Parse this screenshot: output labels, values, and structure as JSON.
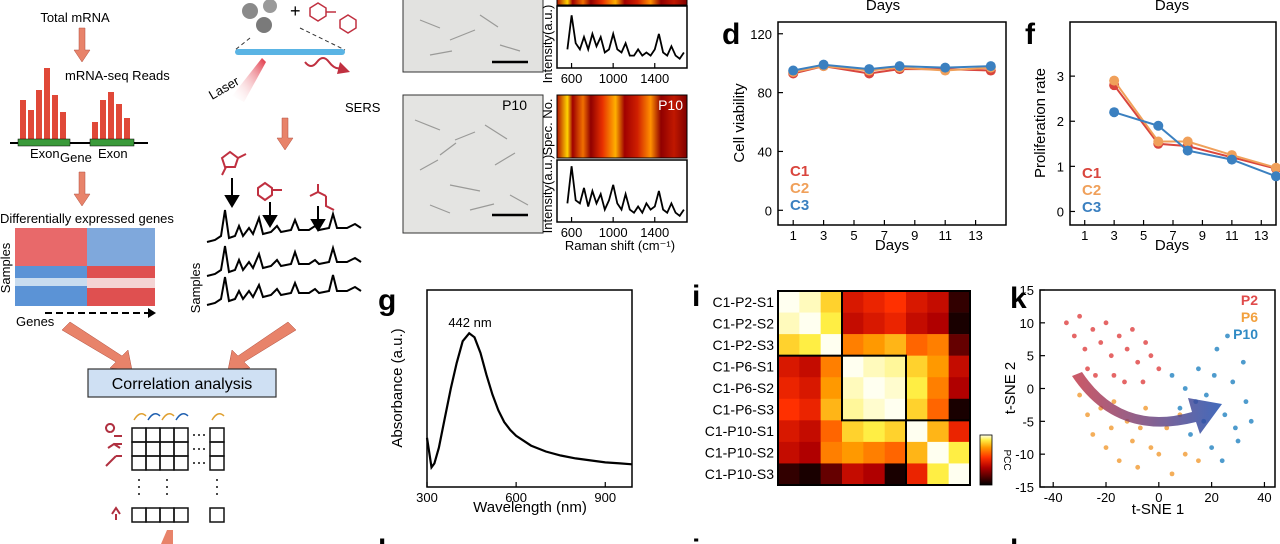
{
  "texts": {
    "total_mrna": "Total mRNA",
    "reads": "mRNA-seq Reads",
    "exon_left": "Exon",
    "gene": "Gene",
    "exon_right": "Exon",
    "deg": "Differentially expressed genes",
    "samples_left": "Samples",
    "genes": "Genes",
    "correlation": "Correlation analysis",
    "laser": "Laser",
    "sers": "SERS",
    "samples_right": "Samples",
    "micro_label": "P10",
    "raman_label": "P10",
    "days_d": "Days",
    "days_f": "Days"
  },
  "panels": {
    "d": "d",
    "f": "f",
    "g": "g",
    "i": "i",
    "k": "k",
    "h": "h",
    "j": "j",
    "l": "l"
  },
  "chart_data": [
    {
      "type": "line",
      "xlabel": "Days",
      "ylabel": "Cell viability",
      "x": [
        1,
        3,
        6,
        8,
        11,
        14
      ],
      "xlim": [
        0,
        15
      ],
      "xticks": [
        1,
        3,
        5,
        7,
        9,
        11,
        13
      ],
      "ylim": [
        -10,
        128
      ],
      "yticks": [
        0,
        40,
        80,
        120
      ],
      "series": [
        {
          "name": "C1",
          "color": "#d9453d",
          "values": [
            93,
            98,
            93,
            96,
            96,
            95
          ]
        },
        {
          "name": "C2",
          "color": "#f0a05a",
          "values": [
            94,
            98,
            95,
            97,
            95,
            97
          ]
        },
        {
          "name": "C3",
          "color": "#3b80c0",
          "values": [
            95,
            99,
            96,
            98,
            97,
            98
          ]
        }
      ]
    },
    {
      "type": "line",
      "xlabel": "Days",
      "ylabel": "Proliferation rate",
      "x": [
        3,
        6,
        8,
        11,
        14
      ],
      "xlim": [
        0,
        14
      ],
      "xticks": [
        1,
        3,
        5,
        7,
        9,
        11,
        13
      ],
      "ylim": [
        -0.3,
        4.2
      ],
      "yticks": [
        0,
        1,
        2,
        3
      ],
      "series": [
        {
          "name": "C1",
          "color": "#d9453d",
          "values": [
            2.8,
            1.5,
            1.45,
            1.2,
            0.95
          ]
        },
        {
          "name": "C2",
          "color": "#f0a05a",
          "values": [
            2.9,
            1.55,
            1.55,
            1.25,
            0.97
          ]
        },
        {
          "name": "C3",
          "color": "#3b80c0",
          "values": [
            2.2,
            1.9,
            1.35,
            1.15,
            0.78
          ]
        }
      ]
    },
    {
      "type": "line",
      "xlabel": "Wavelength (nm)",
      "ylabel": "Absorbance (a.u.)",
      "annotation": "442 nm",
      "color": "#000000",
      "x": [
        300,
        305,
        315,
        325,
        340,
        360,
        380,
        400,
        420,
        442,
        460,
        480,
        500,
        520,
        540,
        560,
        580,
        600,
        650,
        700,
        750,
        800,
        850,
        900,
        950,
        990
      ],
      "values": [
        0.25,
        0.2,
        0.1,
        0.12,
        0.2,
        0.35,
        0.5,
        0.63,
        0.74,
        0.78,
        0.76,
        0.68,
        0.57,
        0.47,
        0.39,
        0.33,
        0.29,
        0.26,
        0.21,
        0.18,
        0.16,
        0.145,
        0.135,
        0.125,
        0.12,
        0.115
      ],
      "xlim": [
        300,
        990
      ],
      "xticks": [
        300,
        600,
        900
      ],
      "ylim": [
        0,
        1
      ]
    },
    {
      "type": "heatmap",
      "colorbar_label": "PCC",
      "zlim": [
        0,
        1
      ],
      "categories": [
        "C1-P2-S1",
        "C1-P2-S2",
        "C1-P2-S3",
        "C1-P6-S1",
        "C1-P6-S2",
        "C1-P6-S3",
        "C1-P10-S1",
        "C1-P10-S2",
        "C1-P10-S3"
      ],
      "values": [
        [
          1.0,
          0.97,
          0.85,
          0.45,
          0.5,
          0.55,
          0.45,
          0.4,
          0.1
        ],
        [
          0.97,
          1.0,
          0.9,
          0.4,
          0.45,
          0.5,
          0.4,
          0.35,
          0.05
        ],
        [
          0.85,
          0.9,
          1.0,
          0.7,
          0.75,
          0.8,
          0.65,
          0.7,
          0.2
        ],
        [
          0.45,
          0.4,
          0.7,
          1.0,
          0.97,
          0.95,
          0.85,
          0.75,
          0.4
        ],
        [
          0.5,
          0.45,
          0.75,
          0.97,
          1.0,
          0.98,
          0.9,
          0.7,
          0.35
        ],
        [
          0.55,
          0.5,
          0.8,
          0.95,
          0.98,
          1.0,
          0.85,
          0.65,
          0.05
        ],
        [
          0.45,
          0.4,
          0.65,
          0.85,
          0.9,
          0.85,
          1.0,
          0.8,
          0.5
        ],
        [
          0.4,
          0.35,
          0.7,
          0.75,
          0.7,
          0.65,
          0.8,
          1.0,
          0.9
        ],
        [
          0.1,
          0.05,
          0.2,
          0.4,
          0.35,
          0.05,
          0.5,
          0.9,
          1.0
        ]
      ]
    },
    {
      "type": "scatter",
      "xlabel": "t-SNE 1",
      "ylabel": "t-SNE 2",
      "xlim": [
        -45,
        44
      ],
      "xticks": [
        -40,
        -20,
        0,
        20,
        40
      ],
      "ylim": [
        -15,
        15
      ],
      "yticks": [
        15,
        10,
        5,
        0,
        -5,
        -10,
        -15
      ],
      "series": [
        {
          "name": "P2",
          "color": "#e04b4b",
          "x": [
            -35,
            -32,
            -30,
            -28,
            -25,
            -22,
            -20,
            -18,
            -15,
            -12,
            -10,
            -8,
            -5,
            -3,
            0,
            -27,
            -24,
            -17,
            -13,
            -6
          ],
          "y": [
            10,
            8,
            11,
            6,
            9,
            7,
            10,
            5,
            8,
            6,
            9,
            4,
            7,
            5,
            3,
            3,
            2,
            2,
            1,
            1
          ]
        },
        {
          "name": "P6",
          "color": "#f2a03d",
          "x": [
            -30,
            -27,
            -25,
            -22,
            -20,
            -18,
            -15,
            -12,
            -10,
            -8,
            -5,
            -3,
            0,
            3,
            5,
            8,
            10,
            15,
            -17,
            -7
          ],
          "y": [
            -1,
            -4,
            -7,
            -3,
            -9,
            -6,
            -11,
            -5,
            -8,
            -12,
            -3,
            -9,
            -10,
            -6,
            -13,
            -4,
            -10,
            -11,
            -2,
            -6
          ]
        },
        {
          "name": "P10",
          "color": "#2f8ac4",
          "x": [
            5,
            8,
            10,
            12,
            15,
            18,
            20,
            22,
            25,
            28,
            30,
            32,
            33,
            35,
            26,
            24,
            17,
            14,
            29,
            21
          ],
          "y": [
            2,
            -3,
            0,
            -7,
            3,
            -1,
            -9,
            6,
            -4,
            1,
            -8,
            4,
            -2,
            -5,
            8,
            -11,
            -5,
            -2,
            -6,
            2
          ]
        }
      ]
    },
    {
      "type": "line",
      "ylabel": "Intensity(a.u.)",
      "color": "#000000",
      "x": [
        560,
        600,
        640,
        680,
        720,
        760,
        800,
        840,
        880,
        920,
        960,
        1000,
        1040,
        1080,
        1120,
        1160,
        1200,
        1240,
        1280,
        1320,
        1360,
        1400,
        1440,
        1480,
        1520,
        1560,
        1600,
        1640,
        1680
      ],
      "values": [
        0.3,
        0.85,
        0.4,
        0.3,
        0.5,
        0.3,
        0.55,
        0.35,
        0.5,
        0.25,
        0.3,
        0.55,
        0.3,
        0.25,
        0.4,
        0.2,
        0.2,
        0.3,
        0.2,
        0.25,
        0.2,
        0.3,
        0.55,
        0.25,
        0.2,
        0.35,
        0.2,
        0.15,
        0.25
      ],
      "xlim": [
        460,
        1710
      ],
      "xticks": [
        600,
        1000,
        1400
      ],
      "ylim": [
        0,
        1
      ]
    },
    {
      "type": "line",
      "xlabel": "Raman shift (cm⁻¹)",
      "ylabel": "Intensity(a.u.)",
      "heatmap_label": "Spec. No.",
      "color": "#000000",
      "x": [
        560,
        600,
        640,
        680,
        720,
        760,
        800,
        840,
        880,
        920,
        960,
        1000,
        1040,
        1080,
        1120,
        1160,
        1200,
        1240,
        1280,
        1320,
        1360,
        1400,
        1440,
        1480,
        1520,
        1560,
        1600,
        1640,
        1680
      ],
      "values": [
        0.3,
        0.9,
        0.35,
        0.3,
        0.55,
        0.25,
        0.5,
        0.3,
        0.45,
        0.2,
        0.35,
        0.6,
        0.3,
        0.2,
        0.45,
        0.2,
        0.15,
        0.25,
        0.15,
        0.3,
        0.2,
        0.25,
        0.5,
        0.2,
        0.15,
        0.3,
        0.15,
        0.1,
        0.2
      ],
      "xlim": [
        460,
        1710
      ],
      "xticks": [
        600,
        1000,
        1400
      ],
      "ylim": [
        0,
        1
      ]
    }
  ]
}
